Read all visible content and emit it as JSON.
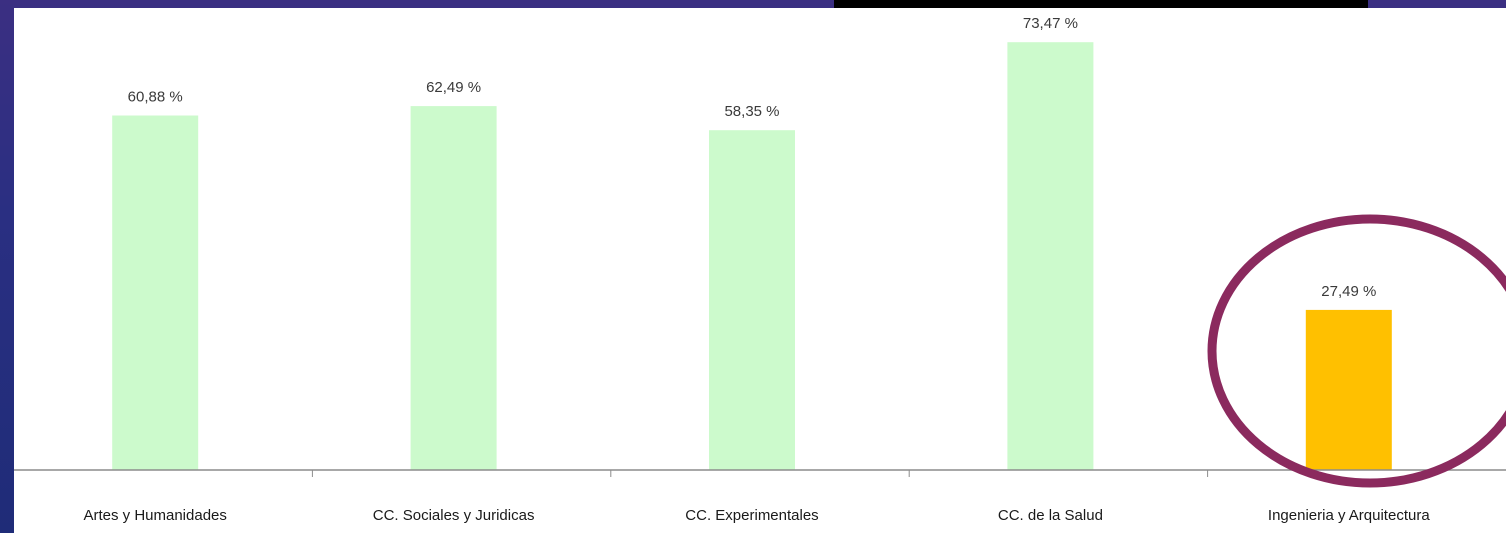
{
  "chart_data": {
    "type": "bar",
    "categories": [
      "Artes y Humanidades",
      "CC. Sociales y Juridicas",
      "CC. Experimentales",
      "CC. de la Salud",
      "Ingenieria y Arquitectura"
    ],
    "values": [
      60.88,
      62.49,
      58.35,
      73.47,
      27.49
    ],
    "value_labels": [
      "60,88 %",
      "62,49 %",
      "58,35 %",
      "73,47 %",
      "27,49 %"
    ],
    "title": "",
    "xlabel": "",
    "ylabel": "",
    "ylim": [
      0,
      79
    ],
    "grid": false,
    "legend": "none",
    "highlight_index": 4,
    "colors": {
      "bar": "#ccfacc",
      "highlight_bar": "#ffc000",
      "highlight_ring": "#8b2a5e",
      "axis": "#8c8c8c",
      "background": "#ffffff",
      "frame": "#2a2f82"
    }
  }
}
